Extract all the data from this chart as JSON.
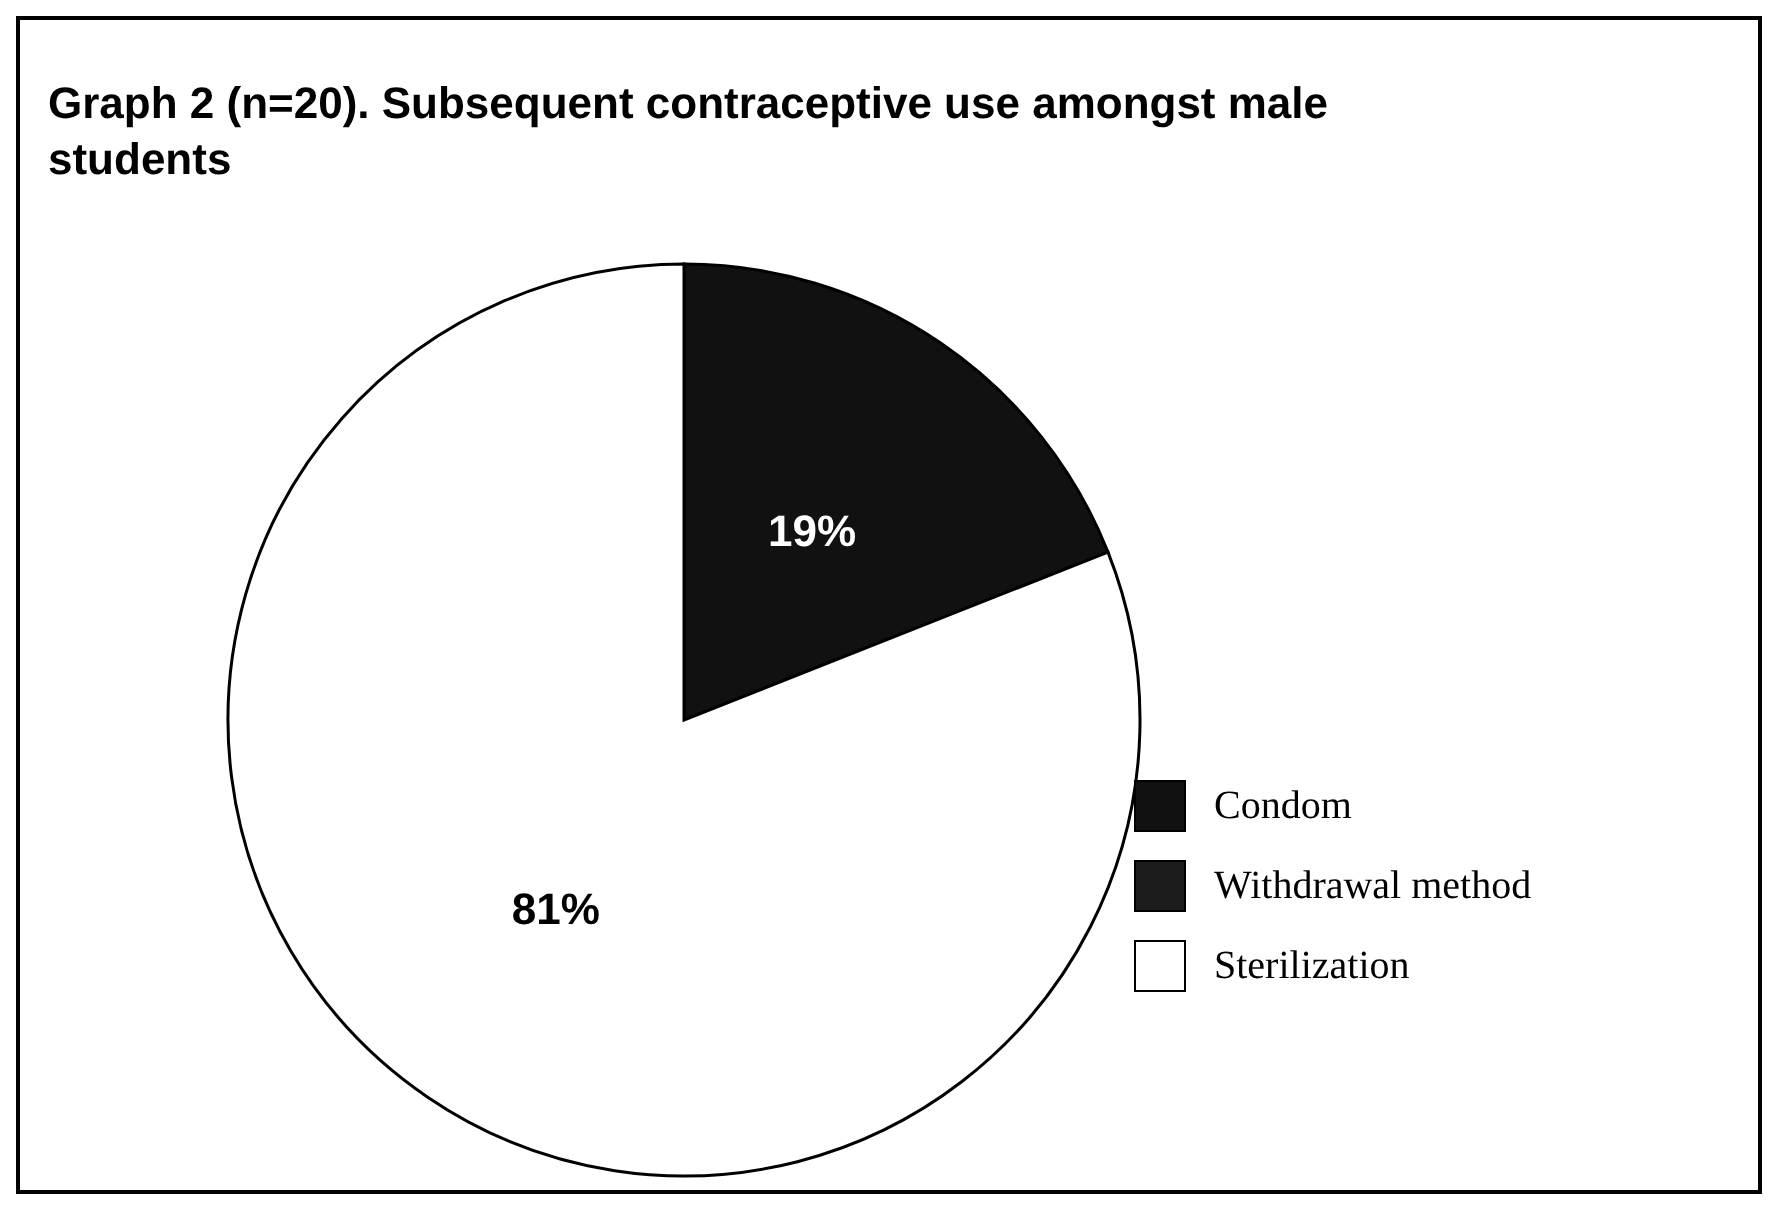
{
  "chart_data": {
    "type": "pie",
    "title": "Graph 2 (n=20).  Subsequent contraceptive use amongst male students",
    "categories": [
      "Condom",
      "Withdrawal method",
      "Sterilization"
    ],
    "values": [
      19,
      0,
      81
    ],
    "colors": [
      "#111111",
      "#1c1c1c",
      "#ffffff"
    ],
    "value_labels": [
      "19%",
      null,
      "81%"
    ],
    "legend": "right"
  }
}
